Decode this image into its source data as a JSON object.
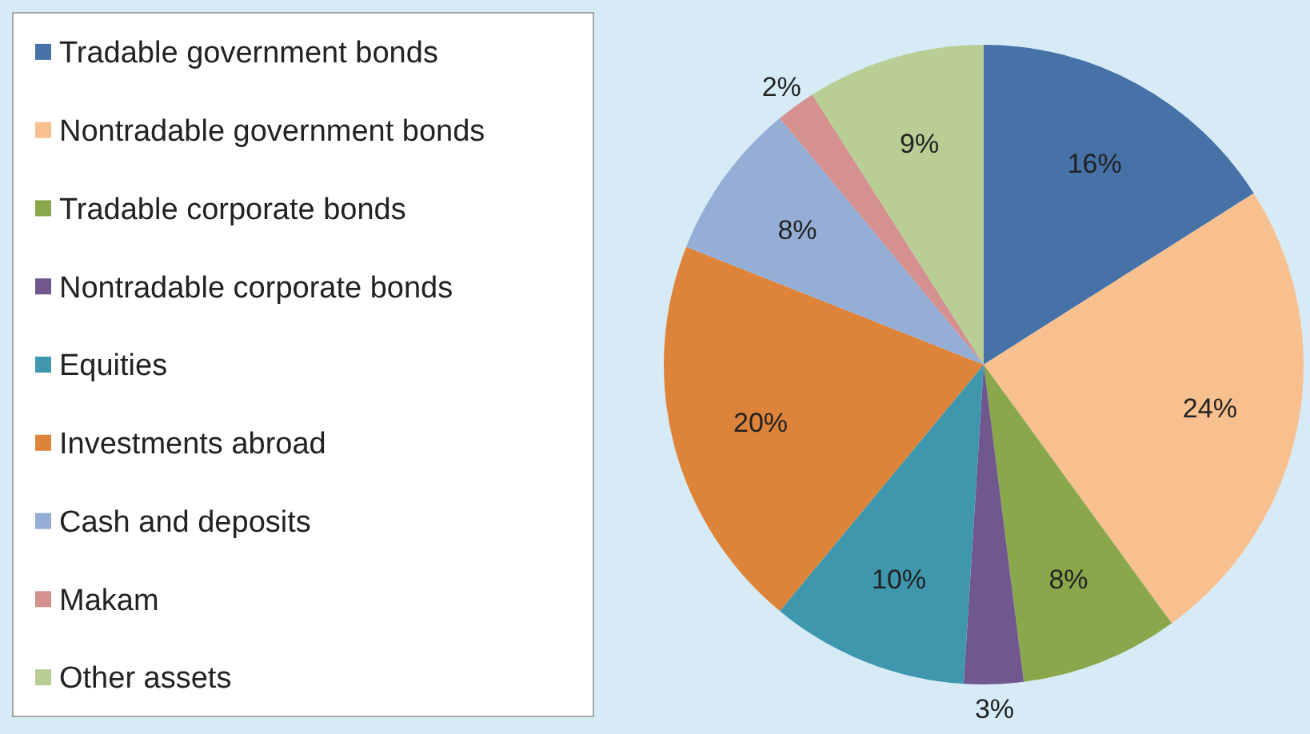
{
  "chart_data": {
    "type": "pie",
    "categories": [
      "Tradable government bonds",
      "Nontradable government bonds",
      "Tradable corporate bonds",
      "Nontradable corporate bonds",
      "Equities",
      "Investments abroad",
      "Cash and deposits",
      "Makam",
      "Other assets"
    ],
    "values": [
      16,
      24,
      8,
      3,
      10,
      20,
      8,
      2,
      9
    ],
    "value_labels": [
      "16%",
      "24%",
      "8%",
      "3%",
      "10%",
      "20%",
      "8%",
      "2%",
      "9%"
    ],
    "colors": [
      "#4672a8",
      "#f9c08f",
      "#8aa84b",
      "#70588f",
      "#3f97ae",
      "#dd843a",
      "#95aed6",
      "#d4918f",
      "#b8ce95"
    ],
    "legend": "left"
  }
}
